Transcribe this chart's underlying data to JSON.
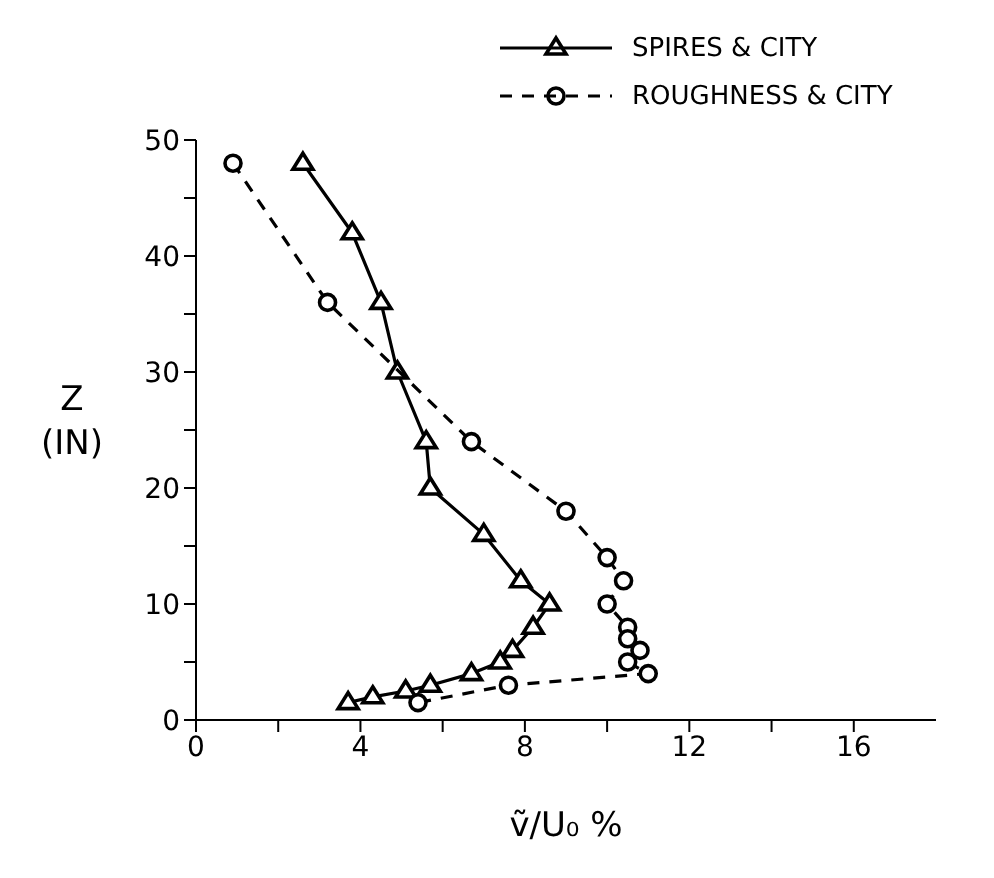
{
  "chart_data": {
    "type": "line",
    "xlabel": "ṽ/U₀ %",
    "ylabel": "Z (IN)",
    "xlim": [
      0,
      18
    ],
    "ylim": [
      0,
      50
    ],
    "xticks": [
      0,
      {
        "value": 2,
        "label": null
      },
      4,
      {
        "value": 6,
        "label": null
      },
      8,
      {
        "value": 10,
        "label": null
      },
      12,
      {
        "value": 14,
        "label": null
      },
      16
    ],
    "yticks": [
      0,
      {
        "value": 5,
        "label": null
      },
      10,
      {
        "value": 15,
        "label": null
      },
      20,
      {
        "value": 25,
        "label": null
      },
      30,
      {
        "value": 35,
        "label": null
      },
      40,
      {
        "value": 45,
        "label": null
      },
      50
    ],
    "grid": false,
    "legend": "top right",
    "series": [
      {
        "name": "SPIRES & CITY",
        "color": "#000000",
        "marker": "triangle",
        "line_style": "solid",
        "x": [
          2.6,
          3.8,
          4.5,
          4.9,
          5.6,
          5.7,
          7.0,
          7.9,
          8.6,
          8.2,
          7.7,
          7.4,
          6.7,
          5.7,
          5.1,
          4.3,
          3.7
        ],
        "values": [
          48,
          42,
          36,
          30,
          24,
          20,
          16,
          12,
          10,
          8,
          6,
          5,
          4,
          3,
          2.5,
          2,
          1.5
        ]
      },
      {
        "name": "ROUGHNESS & CITY",
        "color": "#000000",
        "marker": "circle",
        "line_style": "dashed",
        "x": [
          0.9,
          3.2,
          6.7,
          9.0,
          10.0,
          10.4,
          10.0,
          10.5,
          10.5,
          10.8,
          10.5,
          11.0,
          7.6,
          5.4
        ],
        "values": [
          48,
          36,
          24,
          18,
          14,
          12,
          10,
          8,
          7,
          6,
          5,
          4,
          3,
          1.5
        ]
      }
    ]
  }
}
